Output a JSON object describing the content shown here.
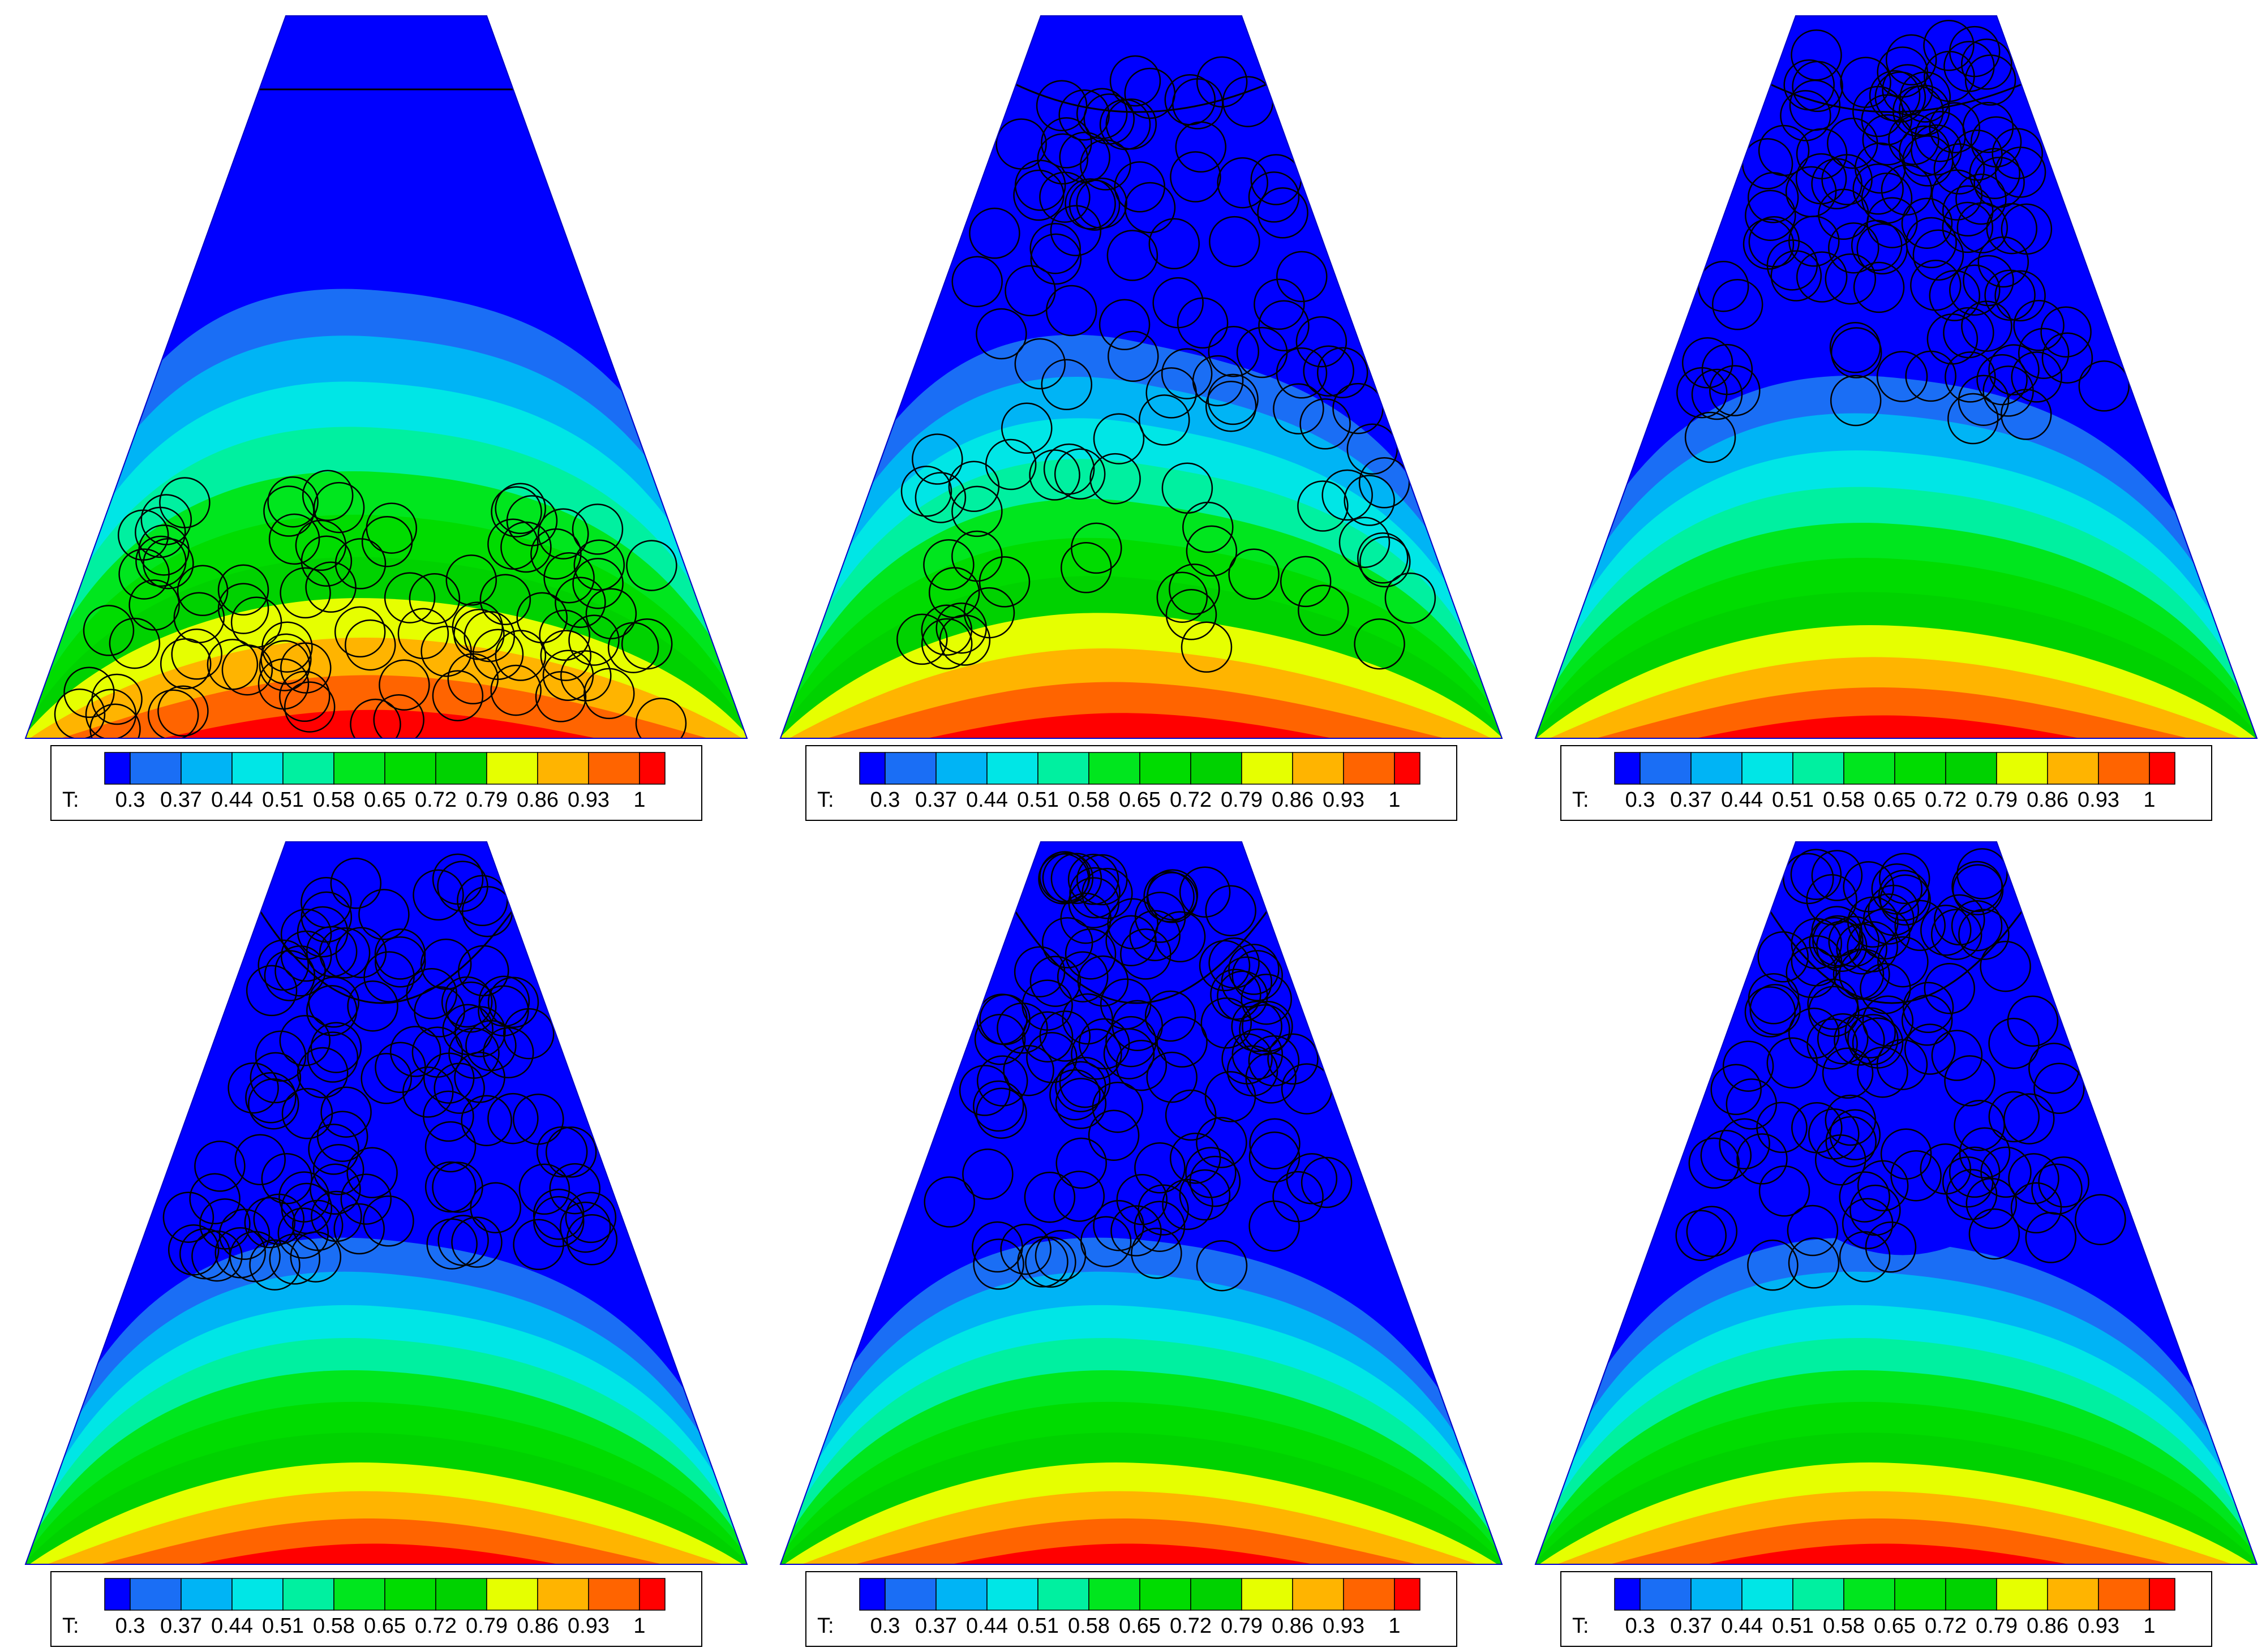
{
  "legend": {
    "variable_label": "T:",
    "tick_labels": [
      "0.3",
      "0.37",
      "0.44",
      "0.51",
      "0.58",
      "0.65",
      "0.72",
      "0.79",
      "0.86",
      "0.93",
      "1"
    ],
    "level_colors": [
      "#0000ff",
      "#1a6ef5",
      "#00b4f5",
      "#00e6e6",
      "#00f0a0",
      "#00e61e",
      "#00dc00",
      "#00d200",
      "#e6ff00",
      "#ffb400",
      "#ff6400",
      "#ff0000"
    ]
  },
  "panels": [
    {
      "id": "state-1",
      "hot_front": 0.62,
      "cold_pocket": 0.0,
      "marks": "rows"
    },
    {
      "id": "state-2",
      "hot_front": 0.55,
      "cold_pocket": 0.35,
      "marks": "mixed"
    },
    {
      "id": "state-3",
      "hot_front": 0.5,
      "cold_pocket": 0.45,
      "marks": "upper"
    },
    {
      "id": "state-4",
      "hot_front": 0.45,
      "cold_pocket": 0.5,
      "marks": "upper"
    },
    {
      "id": "state-5",
      "hot_front": 0.45,
      "cold_pocket": 0.5,
      "marks": "upper"
    },
    {
      "id": "state-6",
      "hot_front": 0.45,
      "cold_pocket": 0.52,
      "marks": "upper"
    }
  ]
}
